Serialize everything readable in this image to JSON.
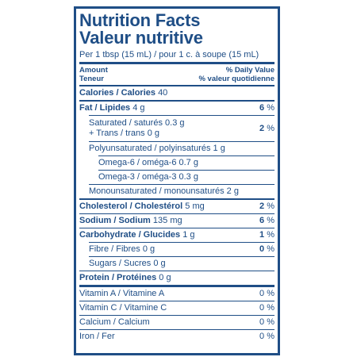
{
  "label": {
    "title_en": "Nutrition Facts",
    "title_fr": "Valeur nutritive",
    "serving": "Per 1 tbsp (15 mL) / pour 1 c. à soupe (15 mL)",
    "header": {
      "amount": "Amount",
      "amount_fr": "Teneur",
      "daily_value": "% Daily Value",
      "daily_value_fr": "% valeur quotidienne"
    },
    "calories": {
      "label": "Calories / Calories",
      "value": "40"
    },
    "fat": {
      "label": "Fat / Lipides",
      "amount": "4 g",
      "dv": "6",
      "pct": "%"
    },
    "saturated": {
      "label1": "Saturated / saturés",
      "amount1": "0.3 g",
      "label2": "+ Trans / trans",
      "amount2": "0 g",
      "dv": "2",
      "pct": "%"
    },
    "polyunsaturated": {
      "label": "Polyunsaturated / polyinsaturés",
      "amount": "1 g"
    },
    "omega6": {
      "label": "Omega-6 / oméga-6",
      "amount": "0.7 g"
    },
    "omega3": {
      "label": "Omega-3 / oméga-3",
      "amount": "0.3 g"
    },
    "monounsaturated": {
      "label": "Monounsaturated / monounsaturés",
      "amount": "2 g"
    },
    "cholesterol": {
      "label": "Cholesterol / Cholestérol",
      "amount": "5 mg",
      "dv": "2",
      "pct": "%"
    },
    "sodium": {
      "label": "Sodium / Sodium",
      "amount": "135 mg",
      "dv": "6",
      "pct": "%"
    },
    "carbohydrate": {
      "label": "Carbohydrate / Glucides",
      "amount": "1 g",
      "dv": "1",
      "pct": "%"
    },
    "fibre": {
      "label": "Fibre / Fibres",
      "amount": "0 g",
      "dv": "0",
      "pct": "%"
    },
    "sugars": {
      "label": "Sugars / Sucres",
      "amount": "0 g"
    },
    "protein": {
      "label": "Protein / Protéines",
      "amount": "0 g"
    },
    "vitamins": [
      {
        "label": "Vitamin A / Vitamine A",
        "value": "0 %"
      },
      {
        "label": "Vitamin C / Vitamine C",
        "value": "0 %"
      },
      {
        "label": "Calcium / Calcium",
        "value": "0 %"
      },
      {
        "label": "Iron / Fer",
        "value": "0 %"
      }
    ]
  }
}
